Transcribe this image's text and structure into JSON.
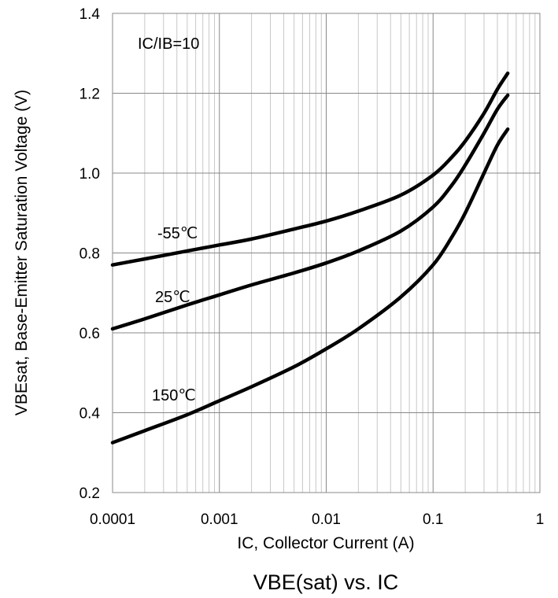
{
  "chart_data": {
    "type": "line",
    "title": "VBE(sat) vs. IC",
    "xlabel": "IC, Collector Current (A)",
    "ylabel": "VBEsat, Base-Emitter Saturation Voltage (V)",
    "xscale": "log",
    "xlim": [
      0.0001,
      1
    ],
    "ylim": [
      0.2,
      1.4
    ],
    "x_ticks": [
      "0.0001",
      "0.001",
      "0.01",
      "0.1",
      "1"
    ],
    "y_ticks": [
      "0.2",
      "0.4",
      "0.6",
      "0.8",
      "1.0",
      "1.2",
      "1.4"
    ],
    "grid": true,
    "annotation": "IC/IB=10",
    "series": [
      {
        "name": "-55℃",
        "x": [
          0.0001,
          0.0002,
          0.0005,
          0.001,
          0.002,
          0.005,
          0.01,
          0.02,
          0.05,
          0.1,
          0.15,
          0.2,
          0.3,
          0.4,
          0.5
        ],
        "y": [
          0.77,
          0.785,
          0.805,
          0.82,
          0.835,
          0.86,
          0.88,
          0.905,
          0.945,
          0.995,
          1.04,
          1.08,
          1.15,
          1.21,
          1.25
        ]
      },
      {
        "name": "25℃",
        "x": [
          0.0001,
          0.0002,
          0.0005,
          0.001,
          0.002,
          0.005,
          0.01,
          0.02,
          0.05,
          0.1,
          0.15,
          0.2,
          0.3,
          0.4,
          0.5
        ],
        "y": [
          0.61,
          0.635,
          0.67,
          0.695,
          0.72,
          0.75,
          0.775,
          0.805,
          0.855,
          0.915,
          0.97,
          1.02,
          1.1,
          1.16,
          1.195
        ]
      },
      {
        "name": "150℃",
        "x": [
          0.0001,
          0.0002,
          0.0005,
          0.001,
          0.002,
          0.005,
          0.01,
          0.02,
          0.05,
          0.1,
          0.15,
          0.2,
          0.3,
          0.4,
          0.5
        ],
        "y": [
          0.325,
          0.355,
          0.395,
          0.43,
          0.465,
          0.515,
          0.56,
          0.61,
          0.69,
          0.77,
          0.84,
          0.9,
          1.0,
          1.07,
          1.11
        ]
      }
    ]
  }
}
